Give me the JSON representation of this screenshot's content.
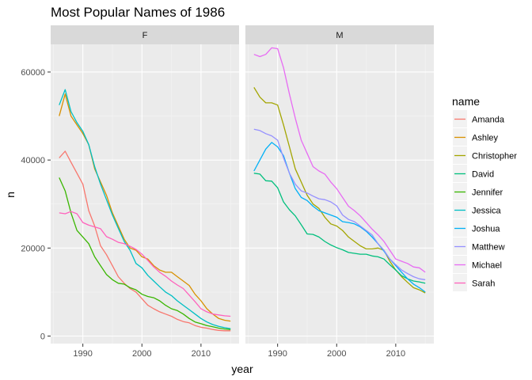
{
  "chart_data": {
    "type": "line",
    "title": "Most Popular Names of 1986",
    "xlabel": "year",
    "ylabel": "n",
    "xlim": [
      1986,
      2015
    ],
    "ylim": [
      0,
      68000
    ],
    "x_ticks": [
      1990,
      2000,
      2010
    ],
    "y_ticks": [
      0,
      20000,
      40000,
      60000
    ],
    "x_tick_labels": [
      "1990",
      "2000",
      "2010"
    ],
    "y_tick_labels": [
      "0",
      "20000",
      "40000",
      "60000"
    ],
    "grid": true,
    "legend": {
      "title": "name",
      "position": "right"
    },
    "x": [
      1986,
      1987,
      1988,
      1989,
      1990,
      1991,
      1992,
      1993,
      1994,
      1995,
      1996,
      1997,
      1998,
      1999,
      2000,
      2001,
      2002,
      2003,
      2004,
      2005,
      2006,
      2007,
      2008,
      2009,
      2010,
      2011,
      2012,
      2013,
      2014,
      2015
    ],
    "panels": [
      {
        "label": "F",
        "series": [
          {
            "name": "Amanda",
            "color": "#F8766D",
            "values": [
              40500,
              42000,
              39500,
              37000,
              34500,
              28500,
              25000,
              20500,
              18500,
              16000,
              13500,
              12000,
              10800,
              10000,
              8500,
              7000,
              6200,
              5500,
              5000,
              4500,
              3800,
              3300,
              3000,
              2400,
              2000,
              1800,
              1500,
              1300,
              1200,
              1200
            ]
          },
          {
            "name": "Ashley",
            "color": "#D89000",
            "values": [
              50000,
              55000,
              50000,
              48000,
              46000,
              43500,
              38000,
              35000,
              32000,
              28000,
              25000,
              22000,
              20000,
              19500,
              18000,
              17500,
              16000,
              15000,
              14500,
              14500,
              13500,
              12500,
              11500,
              9500,
              8000,
              6200,
              5000,
              4000,
              3600,
              3400
            ]
          },
          {
            "name": "Jennifer",
            "color": "#39B600",
            "values": [
              36000,
              33000,
              28000,
              24000,
              22500,
              21000,
              18000,
              16000,
              14000,
              12800,
              12000,
              11800,
              11000,
              10500,
              9500,
              9000,
              8700,
              8000,
              7000,
              6200,
              5800,
              5000,
              4000,
              3200,
              2800,
              2400,
              2100,
              1800,
              1600,
              1500
            ]
          },
          {
            "name": "Jessica",
            "color": "#00BFC4",
            "values": [
              52500,
              56000,
              51000,
              48500,
              46500,
              43500,
              38500,
              34500,
              31000,
              27500,
              24500,
              21500,
              19500,
              16500,
              15500,
              13800,
              12500,
              11200,
              10000,
              9200,
              8000,
              7000,
              6000,
              5000,
              4000,
              3200,
              2600,
              2200,
              1900,
              1700
            ]
          },
          {
            "name": "Sarah",
            "color": "#FF62BC",
            "values": [
              28000,
              27800,
              28300,
              27800,
              25800,
              25200,
              24800,
              24400,
              22600,
              22000,
              21300,
              21000,
              20400,
              19700,
              18600,
              17200,
              15700,
              14500,
              13600,
              12500,
              11600,
              10800,
              9300,
              7800,
              6200,
              5500,
              5000,
              4800,
              4600,
              4500
            ]
          }
        ]
      },
      {
        "label": "M",
        "series": [
          {
            "name": "Christopher",
            "color": "#A3A500",
            "values": [
              56500,
              54300,
              53000,
              53000,
              52500,
              48000,
              43000,
              38000,
              35000,
              32000,
              30000,
              29000,
              27000,
              25500,
              25000,
              24000,
              22500,
              21500,
              20500,
              19800,
              19800,
              20000,
              19500,
              17000,
              15000,
              13500,
              12200,
              11000,
              10500,
              9800
            ]
          },
          {
            "name": "David",
            "color": "#00BF7D",
            "values": [
              37000,
              36800,
              35300,
              35200,
              33700,
              30500,
              28700,
              27300,
              25300,
              23200,
              23100,
              22500,
              21500,
              20700,
              20100,
              19600,
              19000,
              18800,
              18600,
              18600,
              18200,
              18000,
              17500,
              16200,
              15000,
              13700,
              13000,
              12500,
              12300,
              12000
            ]
          },
          {
            "name": "Joshua",
            "color": "#00B0F6",
            "values": [
              37500,
              40000,
              42500,
              44000,
              43000,
              41000,
              37000,
              33500,
              31500,
              30800,
              29500,
              28500,
              28000,
              27500,
              27000,
              26000,
              25800,
              25500,
              24800,
              23800,
              22500,
              21000,
              19300,
              17500,
              16000,
              14500,
              13000,
              11800,
              11000,
              10000
            ]
          },
          {
            "name": "Matthew",
            "color": "#9590FF",
            "values": [
              47000,
              46700,
              46000,
              45500,
              44500,
              40500,
              37000,
              34500,
              33000,
              32500,
              31800,
              31200,
              31000,
              30500,
              29600,
              27500,
              26500,
              26000,
              25000,
              24000,
              23000,
              21000,
              19500,
              17500,
              16200,
              15000,
              14200,
              13500,
              13000,
              12800
            ]
          },
          {
            "name": "Michael",
            "color": "#E76BF3",
            "values": [
              64000,
              63500,
              64000,
              65500,
              65300,
              61000,
              55000,
              49500,
              44500,
              41500,
              38500,
              37500,
              36800,
              35000,
              33500,
              31500,
              29500,
              28500,
              27300,
              25800,
              24300,
              23000,
              21500,
              19500,
              17500,
              17000,
              16500,
              15700,
              15500,
              14500
            ]
          }
        ]
      }
    ]
  }
}
